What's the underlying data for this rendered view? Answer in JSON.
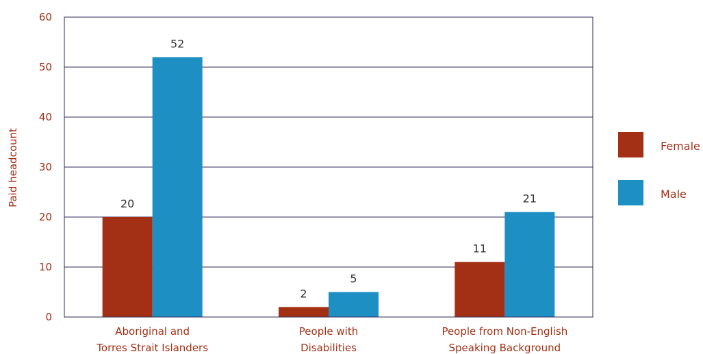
{
  "chart_data": {
    "type": "bar",
    "ylabel": "Paid headcount",
    "xlabel": "",
    "ylim": [
      0,
      60
    ],
    "yticks": [
      0,
      10,
      20,
      30,
      40,
      50,
      60
    ],
    "grid": true,
    "legend_position": "right",
    "categories": [
      [
        "Aboriginal and",
        "Torres Strait Islanders"
      ],
      [
        "People with",
        "Disabilities"
      ],
      [
        "People from Non-English",
        "Speaking Background"
      ]
    ],
    "series": [
      {
        "name": "Female",
        "color": "#a32f14",
        "values": [
          20,
          2,
          11
        ],
        "labels": [
          "20",
          "2",
          "11"
        ]
      },
      {
        "name": "Male",
        "color": "#1e8fc2",
        "values": [
          52,
          5,
          21
        ],
        "labels": [
          "52",
          "5",
          "21"
        ]
      }
    ]
  }
}
